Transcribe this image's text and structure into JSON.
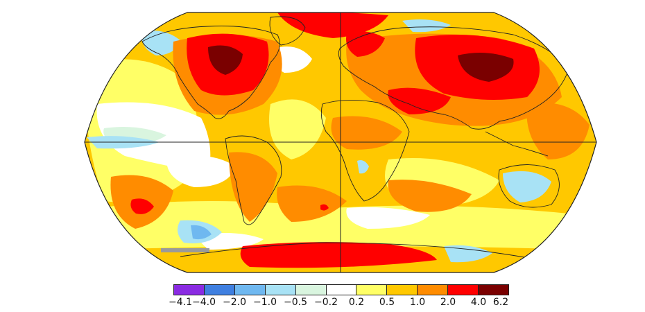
{
  "legend": {
    "bins": [
      {
        "from": "−4.1",
        "to": "−4.0",
        "color": "#8a2be2"
      },
      {
        "from": "−4.0",
        "to": "−2.0",
        "color": "#3f7fe0"
      },
      {
        "from": "−2.0",
        "to": "−1.0",
        "color": "#6fb8f0"
      },
      {
        "from": "−1.0",
        "to": "−0.5",
        "color": "#a8e2f5"
      },
      {
        "from": "−0.5",
        "to": "−0.2",
        "color": "#d9f5df"
      },
      {
        "from": "−0.2",
        "to": "0.2",
        "color": "#ffffff"
      },
      {
        "from": "0.2",
        "to": "0.5",
        "color": "#ffff66"
      },
      {
        "from": "0.5",
        "to": "1.0",
        "color": "#ffc800"
      },
      {
        "from": "1.0",
        "to": "2.0",
        "color": "#ff8c00"
      },
      {
        "from": "2.0",
        "to": "4.0",
        "color": "#ff0000"
      },
      {
        "from": "4.0",
        "to": "6.2",
        "color": "#7a0000"
      }
    ],
    "tick_labels": [
      "−4.1",
      "−4.0",
      "−2.0",
      "−1.0",
      "−0.5",
      "−0.2",
      "0.2",
      "0.5",
      "1.0",
      "2.0",
      "4.0",
      "6.2"
    ]
  },
  "map": {
    "projection": "Robinson",
    "ocean_background": "#ffc800",
    "outline_color": "#222222"
  }
}
